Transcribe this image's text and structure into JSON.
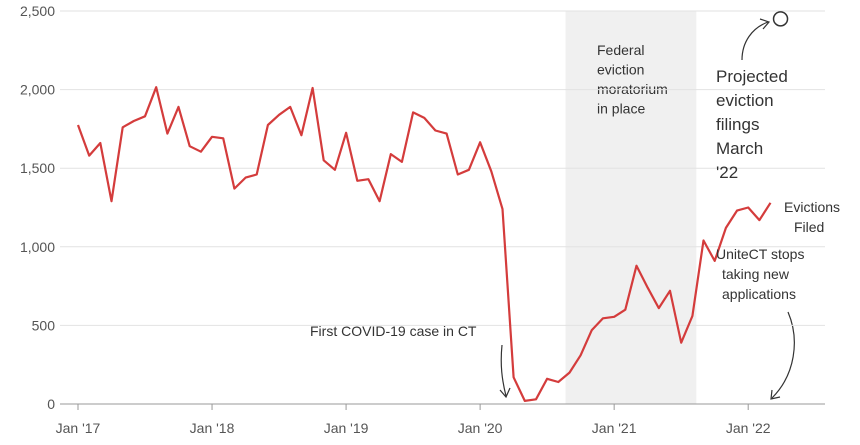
{
  "chart_data": {
    "type": "line",
    "categories": [
      "Jan '17",
      null,
      null,
      null,
      null,
      null,
      null,
      null,
      null,
      null,
      null,
      null,
      "Jan '18",
      null,
      null,
      null,
      null,
      null,
      null,
      null,
      null,
      null,
      null,
      null,
      "Jan '19",
      null,
      null,
      null,
      null,
      null,
      null,
      null,
      null,
      null,
      null,
      null,
      "Jan '20",
      null,
      null,
      null,
      null,
      null,
      null,
      null,
      null,
      null,
      null,
      null,
      "Jan '21",
      null,
      null,
      null,
      null,
      null,
      null,
      null,
      null,
      null,
      null,
      null,
      "Jan '22",
      null,
      null
    ],
    "series": [
      {
        "name": [
          "Evictions",
          "Filed"
        ],
        "color": "#d43c3c",
        "values": [
          1775,
          1580,
          1660,
          1290,
          1760,
          1800,
          1830,
          2015,
          1720,
          1890,
          1640,
          1605,
          1700,
          1690,
          1370,
          1440,
          1460,
          1775,
          1840,
          1890,
          1710,
          2010,
          1550,
          1490,
          1725,
          1420,
          1430,
          1290,
          1590,
          1540,
          1855,
          1820,
          1740,
          1720,
          1460,
          1490,
          1665,
          1480,
          1240,
          170,
          20,
          30,
          160,
          140,
          200,
          310,
          470,
          545,
          555,
          600,
          880,
          740,
          610,
          720,
          390,
          560,
          1040,
          910,
          1120,
          1230,
          1250,
          1170,
          1280
        ]
      },
      {
        "name": [
          "Projected",
          "eviction",
          "filings",
          "March",
          "'22"
        ],
        "color": "#333333",
        "values": [
          null,
          null,
          null,
          null,
          null,
          null,
          null,
          null,
          null,
          null,
          null,
          null,
          null,
          null,
          null,
          null,
          null,
          null,
          null,
          null,
          null,
          null,
          null,
          null,
          null,
          null,
          null,
          null,
          null,
          null,
          null,
          null,
          null,
          null,
          null,
          null,
          null,
          null,
          null,
          null,
          null,
          null,
          null,
          null,
          null,
          null,
          null,
          null,
          null,
          null,
          null,
          null,
          null,
          null,
          null,
          null,
          null,
          null,
          null,
          null,
          null,
          null,
          2450
        ]
      }
    ],
    "ylim": [
      0,
      2500
    ],
    "yticks": [
      0,
      500,
      {
        "value": 1000,
        "label": "1,000"
      },
      {
        "value": 1500,
        "label": "1,500"
      },
      {
        "value": 2000,
        "label": "2,000"
      },
      {
        "value": 2500,
        "label": "2,500"
      }
    ],
    "grid": true,
    "shaded": {
      "from": 44,
      "to": 55,
      "label": [
        "Federal",
        "eviction",
        "moratorium",
        "in place"
      ]
    },
    "annotations": [
      {
        "text": [
          "First COVID-19 case in CT"
        ]
      },
      {
        "text": [
          "UniteCT stops",
          "taking new",
          "applications"
        ]
      }
    ]
  }
}
